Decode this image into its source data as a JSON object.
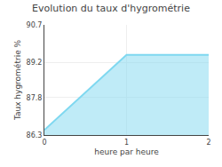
{
  "chart_data": {
    "type": "area",
    "title": "Evolution du taux d'hygrométrie",
    "xlabel": "heure par heure",
    "ylabel": "Taux hygrométrie %",
    "x": [
      0,
      1,
      2
    ],
    "values": [
      86.5,
      89.5,
      89.5
    ],
    "color": "#7fd8f0",
    "xlim": [
      0,
      2
    ],
    "ylim": [
      86.3,
      90.7
    ],
    "xticks": [
      0,
      1,
      2
    ],
    "yticks": [
      86.3,
      87.8,
      89.2,
      90.7
    ],
    "grid": true
  }
}
